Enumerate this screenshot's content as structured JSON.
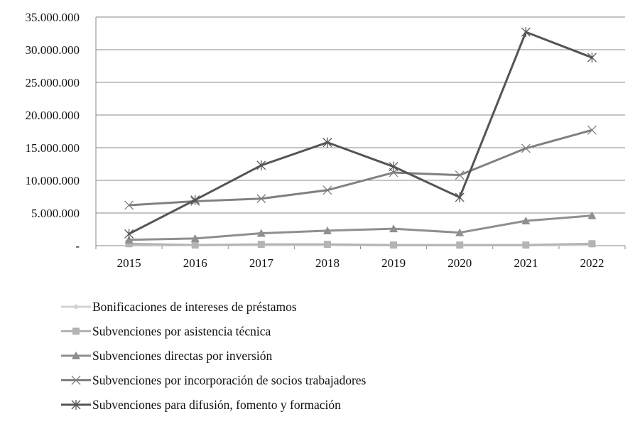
{
  "chart_data": {
    "type": "line",
    "title": "",
    "xlabel": "",
    "ylabel": "",
    "categories": [
      "2015",
      "2016",
      "2017",
      "2018",
      "2019",
      "2020",
      "2021",
      "2022"
    ],
    "ylim": [
      0,
      35000000
    ],
    "yticks": [
      0,
      5000000,
      10000000,
      15000000,
      20000000,
      25000000,
      30000000,
      35000000
    ],
    "ytick_labels": [
      "-",
      "5.000.000",
      "10.000.000",
      "15.000.000",
      "20.000.000",
      "25.000.000",
      "30.000.000",
      "35.000.000"
    ],
    "grid": "horizontal",
    "legend_position": "bottom",
    "series": [
      {
        "name": "Bonificaciones de intereses de préstamos",
        "marker": "diamond",
        "color": "#d3d3d3",
        "values": [
          200000,
          100000,
          100000,
          100000,
          50000,
          50000,
          50000,
          100000
        ]
      },
      {
        "name": "Subvenciones por asistencia técnica",
        "marker": "square",
        "color": "#b4b4b4",
        "values": [
          300000,
          100000,
          200000,
          200000,
          100000,
          100000,
          100000,
          300000
        ]
      },
      {
        "name": "Subvenciones directas por inversión",
        "marker": "triangle",
        "color": "#8f8f8f",
        "values": [
          900000,
          1100000,
          1900000,
          2300000,
          2600000,
          2000000,
          3800000,
          4600000
        ]
      },
      {
        "name": "Subvenciones por incorporación de socios trabajadores",
        "marker": "x",
        "color": "#808080",
        "values": [
          6200000,
          6800000,
          7200000,
          8500000,
          11200000,
          10800000,
          14900000,
          17700000
        ]
      },
      {
        "name": "Subvenciones para difusión, fomento y formación",
        "marker": "star",
        "color": "#555555",
        "values": [
          1800000,
          7000000,
          12300000,
          15800000,
          12100000,
          7400000,
          32700000,
          28800000
        ]
      }
    ]
  }
}
